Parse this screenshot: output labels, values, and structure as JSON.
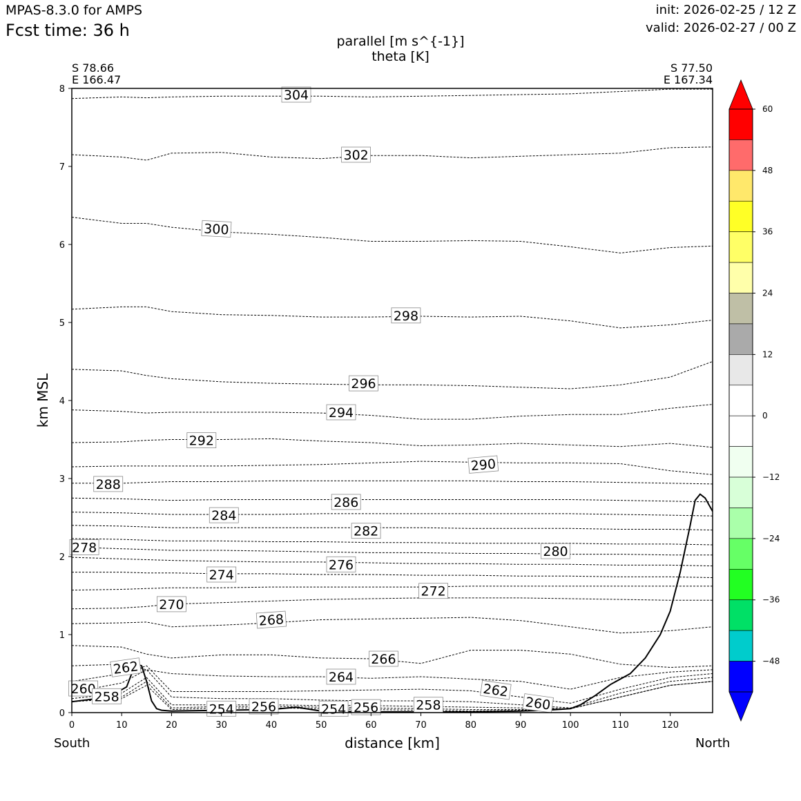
{
  "header": {
    "model": "MPAS-8.3.0 for AMPS",
    "fcst": "Fcst time:   36 h",
    "init": "init: 2026-02-25 / 12 Z",
    "valid": "valid: 2026-02-27 / 00 Z"
  },
  "chart_data": {
    "type": "contour",
    "title_line1": "parallel [m s^{-1}]",
    "title_line2": "theta [K]",
    "start_point": {
      "lat": "S 78.66",
      "lon": "E 166.47"
    },
    "end_point": {
      "lat": "S 77.50",
      "lon": "E 167.34"
    },
    "xlabel": "distance [km]",
    "ylabel": "km MSL",
    "left_end_label": "South",
    "right_end_label": "North",
    "xlim": [
      0,
      128.5
    ],
    "ylim": [
      0,
      8
    ],
    "xticks": [
      0,
      10,
      20,
      30,
      40,
      50,
      60,
      70,
      80,
      90,
      100,
      110,
      120
    ],
    "yticks": [
      0,
      1,
      2,
      3,
      4,
      5,
      6,
      7,
      8
    ],
    "terrain": {
      "x": [
        0,
        5,
        8,
        11,
        12,
        13,
        14,
        15,
        16,
        17,
        18,
        20,
        30,
        40,
        45,
        50,
        60,
        70,
        80,
        90,
        95,
        100,
        102,
        105,
        108,
        112,
        115,
        118,
        120,
        122,
        124,
        125,
        126,
        127,
        128.5
      ],
      "z": [
        0.14,
        0.18,
        0.22,
        0.33,
        0.5,
        0.62,
        0.6,
        0.4,
        0.15,
        0.05,
        0.03,
        0.02,
        0.03,
        0.04,
        0.07,
        0.02,
        0.01,
        0.01,
        0.01,
        0.02,
        0.03,
        0.05,
        0.1,
        0.22,
        0.36,
        0.5,
        0.7,
        1.0,
        1.3,
        1.8,
        2.4,
        2.72,
        2.8,
        2.75,
        2.58
      ]
    },
    "theta_contours": [
      {
        "level": 304,
        "z": [
          7.87,
          7.89,
          7.88,
          7.89,
          7.9,
          7.9,
          7.9,
          7.89,
          7.9,
          7.91,
          7.92,
          7.93,
          7.96,
          7.99,
          7.99
        ]
      },
      {
        "level": 302,
        "z": [
          7.15,
          7.12,
          7.08,
          7.17,
          7.18,
          7.12,
          7.1,
          7.14,
          7.14,
          7.11,
          7.13,
          7.15,
          7.17,
          7.24,
          7.25
        ]
      },
      {
        "level": 300,
        "z": [
          6.35,
          6.27,
          6.27,
          6.22,
          6.16,
          6.13,
          6.09,
          6.04,
          6.04,
          6.05,
          6.04,
          5.97,
          5.89,
          5.96,
          5.98
        ]
      },
      {
        "level": 298,
        "z": [
          5.17,
          5.2,
          5.2,
          5.14,
          5.1,
          5.09,
          5.07,
          5.07,
          5.08,
          5.07,
          5.08,
          5.02,
          4.93,
          4.97,
          5.03
        ]
      },
      {
        "level": 296,
        "z": [
          4.4,
          4.38,
          4.32,
          4.28,
          4.24,
          4.22,
          4.21,
          4.2,
          4.2,
          4.19,
          4.17,
          4.15,
          4.2,
          4.3,
          4.5
        ]
      },
      {
        "level": 294,
        "z": [
          3.88,
          3.86,
          3.84,
          3.85,
          3.85,
          3.85,
          3.84,
          3.81,
          3.76,
          3.76,
          3.8,
          3.82,
          3.82,
          3.9,
          3.95
        ]
      },
      {
        "level": 292,
        "z": [
          3.46,
          3.47,
          3.49,
          3.5,
          3.5,
          3.51,
          3.48,
          3.46,
          3.42,
          3.43,
          3.45,
          3.43,
          3.41,
          3.45,
          3.4
        ]
      },
      {
        "level": 290,
        "z": [
          3.15,
          3.16,
          3.16,
          3.16,
          3.16,
          3.17,
          3.18,
          3.2,
          3.22,
          3.21,
          3.2,
          3.2,
          3.19,
          3.1,
          3.05
        ]
      },
      {
        "level": 288,
        "z": [
          2.94,
          2.94,
          2.95,
          2.96,
          2.96,
          2.97,
          2.97,
          2.97,
          2.97,
          2.97,
          2.96,
          2.96,
          2.95,
          2.94,
          2.93
        ]
      },
      {
        "level": 286,
        "z": [
          2.75,
          2.74,
          2.73,
          2.72,
          2.73,
          2.73,
          2.73,
          2.73,
          2.73,
          2.73,
          2.73,
          2.73,
          2.72,
          2.71,
          2.7
        ]
      },
      {
        "level": 284,
        "z": [
          2.57,
          2.56,
          2.55,
          2.54,
          2.54,
          2.54,
          2.55,
          2.55,
          2.55,
          2.55,
          2.55,
          2.55,
          2.54,
          2.53,
          2.52
        ]
      },
      {
        "level": 282,
        "z": [
          2.4,
          2.39,
          2.38,
          2.37,
          2.37,
          2.37,
          2.37,
          2.37,
          2.37,
          2.36,
          2.36,
          2.36,
          2.35,
          2.35,
          2.34
        ]
      },
      {
        "level": 280,
        "z": [
          2.23,
          2.22,
          2.21,
          2.2,
          2.2,
          2.19,
          2.19,
          2.18,
          2.18,
          2.17,
          2.17,
          2.17,
          2.16,
          2.16,
          2.15
        ]
      },
      {
        "level": 278,
        "z": [
          2.12,
          2.1,
          2.09,
          2.08,
          2.08,
          2.07,
          2.06,
          2.05,
          2.05,
          2.04,
          2.04,
          2.03,
          2.03,
          2.02,
          2.02
        ]
      },
      {
        "level": 276,
        "z": [
          1.99,
          1.97,
          1.96,
          1.95,
          1.94,
          1.93,
          1.93,
          1.92,
          1.91,
          1.91,
          1.9,
          1.9,
          1.89,
          1.89,
          1.88
        ]
      },
      {
        "level": 274,
        "z": [
          1.8,
          1.8,
          1.79,
          1.79,
          1.78,
          1.78,
          1.77,
          1.77,
          1.76,
          1.76,
          1.75,
          1.75,
          1.74,
          1.74,
          1.73
        ]
      },
      {
        "level": 272,
        "z": [
          1.57,
          1.58,
          1.59,
          1.6,
          1.6,
          1.61,
          1.61,
          1.61,
          1.61,
          1.62,
          1.62,
          1.62,
          1.62,
          1.62,
          1.62
        ]
      },
      {
        "level": 270,
        "z": [
          1.33,
          1.34,
          1.36,
          1.39,
          1.41,
          1.43,
          1.45,
          1.46,
          1.47,
          1.47,
          1.47,
          1.46,
          1.45,
          1.44,
          1.44
        ]
      },
      {
        "level": 268,
        "z": [
          1.14,
          1.15,
          1.16,
          1.1,
          1.12,
          1.15,
          1.19,
          1.2,
          1.21,
          1.22,
          1.18,
          1.1,
          1.02,
          1.05,
          1.1
        ]
      },
      {
        "level": 266,
        "z": [
          0.86,
          0.84,
          0.75,
          0.7,
          0.74,
          0.74,
          0.7,
          0.69,
          0.63,
          0.8,
          0.8,
          0.75,
          0.62,
          0.58,
          0.6
        ]
      },
      {
        "level": 264,
        "z": [
          0.6,
          0.62,
          0.55,
          0.5,
          0.47,
          0.46,
          0.46,
          0.44,
          0.46,
          0.43,
          0.4,
          0.3,
          0.45,
          0.52,
          0.55
        ]
      },
      {
        "level": 262,
        "z": [
          0.4,
          0.5,
          0.6,
          0.27,
          0.27,
          0.27,
          0.28,
          0.29,
          0.3,
          0.28,
          0.2,
          0.12,
          0.3,
          0.45,
          0.5
        ]
      },
      {
        "level": 260,
        "z": [
          0.26,
          0.38,
          0.55,
          0.2,
          0.18,
          0.18,
          0.16,
          0.15,
          0.15,
          0.14,
          0.1,
          0.06,
          0.25,
          0.4,
          0.45
        ]
      },
      {
        "level": 258,
        "z": [
          0.18,
          0.25,
          0.45,
          0.1,
          0.1,
          0.1,
          0.09,
          0.09,
          0.08,
          0.07,
          0.06,
          0.05,
          0.2,
          0.35,
          0.4
        ]
      },
      {
        "level": 256,
        "z": [
          0.14,
          0.2,
          0.4,
          0.06,
          0.08,
          0.08,
          0.07,
          0.06,
          0.05,
          0.04,
          0.04,
          0.05,
          0.2,
          0.35,
          0.4
        ]
      },
      {
        "level": 254,
        "z": [
          0.14,
          0.18,
          0.35,
          0.04,
          0.06,
          0.06,
          0.05,
          0.04,
          0.03,
          0.02,
          0.03,
          0.05,
          0.2,
          0.35,
          0.4
        ]
      }
    ],
    "contour_x": [
      0,
      10,
      15,
      20,
      30,
      40,
      50,
      60,
      70,
      80,
      90,
      100,
      110,
      120,
      128.5
    ],
    "contour_labels": [
      {
        "text": "304",
        "x": 45,
        "y": 7.92,
        "rot": 0
      },
      {
        "text": "302",
        "x": 57,
        "y": 7.15,
        "rot": 0
      },
      {
        "text": "300",
        "x": 29,
        "y": 6.2,
        "rot": 3
      },
      {
        "text": "298",
        "x": 67,
        "y": 5.09,
        "rot": 0
      },
      {
        "text": "296",
        "x": 58.5,
        "y": 4.22,
        "rot": 0
      },
      {
        "text": "294",
        "x": 54,
        "y": 3.85,
        "rot": 0
      },
      {
        "text": "292",
        "x": 26,
        "y": 3.49,
        "rot": 0
      },
      {
        "text": "290",
        "x": 82.5,
        "y": 3.18,
        "rot": -5
      },
      {
        "text": "288",
        "x": 7.3,
        "y": 2.93,
        "rot": 0
      },
      {
        "text": "286",
        "x": 55,
        "y": 2.7,
        "rot": 0
      },
      {
        "text": "284",
        "x": 30.5,
        "y": 2.53,
        "rot": 0
      },
      {
        "text": "282",
        "x": 59,
        "y": 2.33,
        "rot": 0
      },
      {
        "text": "280",
        "x": 97,
        "y": 2.07,
        "rot": 0
      },
      {
        "text": "278",
        "x": 2.5,
        "y": 2.12,
        "rot": 0
      },
      {
        "text": "276",
        "x": 54,
        "y": 1.9,
        "rot": 0
      },
      {
        "text": "274",
        "x": 30,
        "y": 1.77,
        "rot": 0
      },
      {
        "text": "272",
        "x": 72.5,
        "y": 1.56,
        "rot": 0
      },
      {
        "text": "270",
        "x": 20,
        "y": 1.39,
        "rot": 0
      },
      {
        "text": "268",
        "x": 40,
        "y": 1.19,
        "rot": -4
      },
      {
        "text": "266",
        "x": 62.5,
        "y": 0.69,
        "rot": 0
      },
      {
        "text": "264",
        "x": 54,
        "y": 0.46,
        "rot": 0
      },
      {
        "text": "262",
        "x": 10.8,
        "y": 0.58,
        "rot": -8
      },
      {
        "text": "262",
        "x": 85,
        "y": 0.29,
        "rot": 8
      },
      {
        "text": "260",
        "x": 2.3,
        "y": 0.31,
        "rot": 0
      },
      {
        "text": "260",
        "x": 93.5,
        "y": 0.12,
        "rot": 8
      },
      {
        "text": "258",
        "x": 7,
        "y": 0.21,
        "rot": 0
      },
      {
        "text": "258",
        "x": 71.5,
        "y": 0.1,
        "rot": 0
      },
      {
        "text": "256",
        "x": 38.5,
        "y": 0.08,
        "rot": 0
      },
      {
        "text": "256",
        "x": 59,
        "y": 0.07,
        "rot": 0
      },
      {
        "text": "254",
        "x": 30,
        "y": 0.05,
        "rot": 0
      },
      {
        "text": "254",
        "x": 52.5,
        "y": 0.05,
        "rot": 0
      }
    ],
    "colorbar": {
      "ticks": [
        60,
        48,
        36,
        24,
        12,
        0,
        -12,
        -24,
        -36,
        -48
      ],
      "tick_labels": [
        "60",
        "48",
        "36",
        "24",
        "12",
        "0",
        "−12",
        "−24",
        "−36",
        "−48"
      ],
      "colors": [
        "#ff0000",
        "#ff6b6b",
        "#ffe86b",
        "#ffff26",
        "#ffff66",
        "#ffffaa",
        "#bfbfa6",
        "#aaaaaa",
        "#e8e8e8",
        "#ffffff",
        "#ffffff",
        "#f0fff0",
        "#d8ffd8",
        "#aaffaa",
        "#66ff66",
        "#22ff22",
        "#00e066",
        "#00cccc",
        "#0000ff"
      ],
      "over_color": "#ff0000",
      "under_color": "#0000ff",
      "range": [
        -54,
        60
      ]
    }
  }
}
